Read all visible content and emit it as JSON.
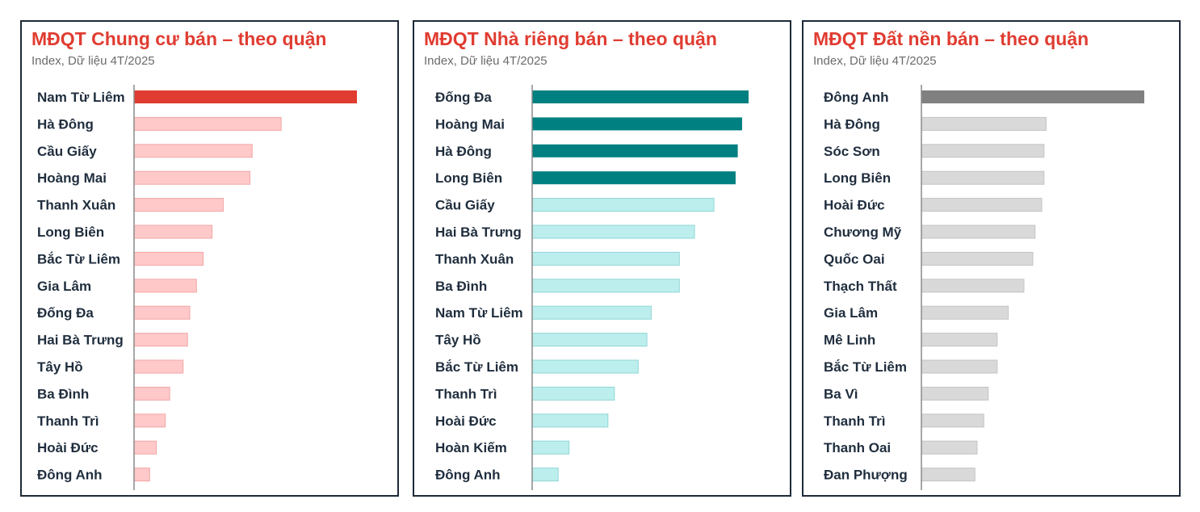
{
  "chart_data": [
    {
      "type": "bar",
      "orientation": "horizontal",
      "title": "MĐQT Chung cư bán – theo quận",
      "subtitle": "Index, Dữ liệu 4T/2025",
      "categories": [
        "Nam Từ Liêm",
        "Hà Đông",
        "Cầu Giấy",
        "Hoàng Mai",
        "Thanh Xuân",
        "Long Biên",
        "Bắc Từ Liêm",
        "Gia Lâm",
        "Đống Đa",
        "Hai Bà Trưng",
        "Tây Hồ",
        "Ba Đình",
        "Thanh Trì",
        "Hoài Đức",
        "Đông Anh"
      ],
      "values": [
        100,
        66,
        53,
        52,
        40,
        35,
        31,
        28,
        25,
        24,
        22,
        16,
        14,
        10,
        7
      ],
      "highlight_count": 1,
      "colors": {
        "highlight": "#e03c31",
        "base": "#ffc9c9",
        "base_stroke": "#f2a6a6"
      },
      "xlim": [
        0,
        100
      ]
    },
    {
      "type": "bar",
      "orientation": "horizontal",
      "title": "MĐQT Nhà riêng bán – theo quận",
      "subtitle": "Index, Dữ liệu 4T/2025",
      "categories": [
        "Đống Đa",
        "Hoàng Mai",
        "Hà Đông",
        "Long Biên",
        "Cầu Giấy",
        "Hai Bà Trưng",
        "Thanh Xuân",
        "Ba Đình",
        "Nam Từ Liêm",
        "Tây Hồ",
        "Bắc Từ Liêm",
        "Thanh Trì",
        "Hoài Đức",
        "Hoàn Kiếm",
        "Đông Anh"
      ],
      "values": [
        100,
        97,
        95,
        94,
        84,
        75,
        68,
        68,
        55,
        53,
        49,
        38,
        35,
        17,
        12
      ],
      "highlight_count": 4,
      "colors": {
        "highlight": "#008080",
        "base": "#bdeeee",
        "base_stroke": "#8fd6d6"
      },
      "xlim": [
        0,
        100
      ]
    },
    {
      "type": "bar",
      "orientation": "horizontal",
      "title": "MĐQT Đất nền bán – theo quận",
      "subtitle": "Index, Dữ liệu 4T/2025",
      "categories": [
        "Đông Anh",
        "Hà Đông",
        "Sóc Sơn",
        "Long Biên",
        "Hoài Đức",
        "Chương Mỹ",
        "Quốc Oai",
        "Thạch Thất",
        "Gia Lâm",
        "Mê Linh",
        "Bắc Từ Liêm",
        "Ba Vì",
        "Thanh Trì",
        "Thanh Oai",
        "Đan Phượng"
      ],
      "values": [
        100,
        56,
        55,
        55,
        54,
        51,
        50,
        46,
        39,
        34,
        34,
        30,
        28,
        25,
        24
      ],
      "highlight_count": 1,
      "colors": {
        "highlight": "#808080",
        "base": "#d9d9d9",
        "base_stroke": "#c4c4c4"
      },
      "xlim": [
        0,
        100
      ]
    }
  ]
}
